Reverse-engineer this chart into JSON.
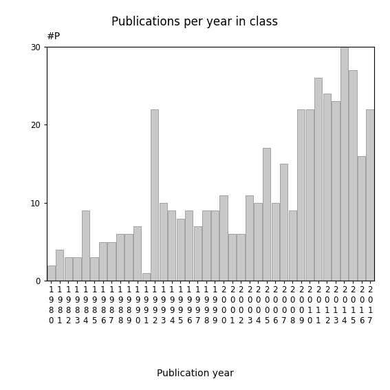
{
  "years": [
    1980,
    1981,
    1982,
    1983,
    1984,
    1985,
    1986,
    1987,
    1988,
    1989,
    1990,
    1991,
    1992,
    1993,
    1994,
    1995,
    1996,
    1997,
    1998,
    1999,
    2000,
    2001,
    2002,
    2003,
    2004,
    2005,
    2006,
    2007,
    2008,
    2009,
    2010,
    2011,
    2012,
    2013,
    2014,
    2015,
    2016,
    2017
  ],
  "values": [
    2,
    4,
    3,
    3,
    9,
    3,
    5,
    5,
    6,
    6,
    7,
    1,
    22,
    10,
    9,
    8,
    9,
    7,
    9,
    9,
    11,
    6,
    6,
    11,
    10,
    17,
    10,
    15,
    9,
    22,
    22,
    26,
    24,
    23,
    30,
    27,
    16,
    22
  ],
  "bar_color": "#c8c8c8",
  "bar_edgecolor": "#888888",
  "title": "Publications per year in class",
  "xlabel": "Publication year",
  "ylabel": "#P",
  "ylim": [
    0,
    30
  ],
  "yticks": [
    0,
    10,
    20,
    30
  ],
  "background_color": "#ffffff",
  "title_fontsize": 12,
  "axis_fontsize": 10,
  "tick_fontsize": 8.5
}
